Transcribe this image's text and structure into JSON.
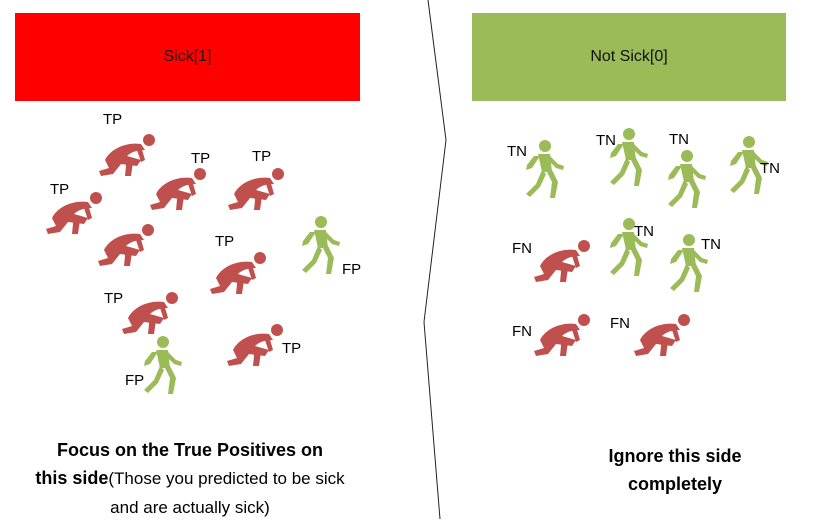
{
  "banners": {
    "sick": "Sick[1]",
    "not_sick": "Not Sick[0]"
  },
  "colors": {
    "sick": "#fe0000",
    "not_sick": "#9bbb59",
    "crouch": "#c0504d",
    "walk": "#9bbb59"
  },
  "labels": {
    "tp": "TP",
    "fp": "FP",
    "tn": "TN",
    "fn": "FN"
  },
  "left_caption": {
    "bold_line1": "Focus on the True Positives  on",
    "bold_line2": "this side",
    "normal": "(Those you predicted to be sick and are actually sick)"
  },
  "right_caption": {
    "line1": "Ignore this side",
    "line2": "completely"
  }
}
